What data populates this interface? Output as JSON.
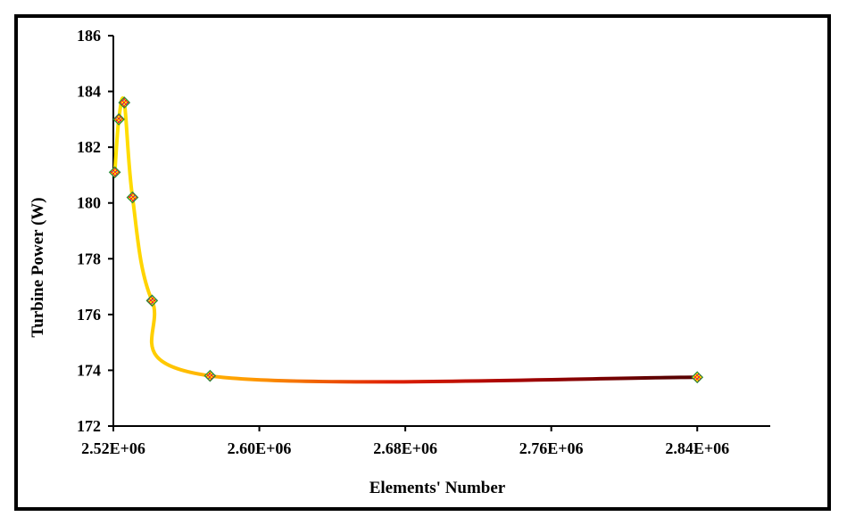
{
  "chart_data": {
    "type": "line",
    "title": "",
    "xlabel": "Elements' Number",
    "ylabel": "Turbine Power (W)",
    "xlim": [
      2520000,
      2880000
    ],
    "ylim": [
      172,
      186
    ],
    "x_ticks": [
      {
        "value": 2520000,
        "label": "2.52E+06"
      },
      {
        "value": 2600000,
        "label": "2.60E+06"
      },
      {
        "value": 2680000,
        "label": "2.68E+06"
      },
      {
        "value": 2760000,
        "label": "2.76E+06"
      },
      {
        "value": 2840000,
        "label": "2.84E+06"
      }
    ],
    "y_ticks": [
      {
        "value": 172,
        "label": "172"
      },
      {
        "value": 174,
        "label": "174"
      },
      {
        "value": 176,
        "label": "176"
      },
      {
        "value": 178,
        "label": "178"
      },
      {
        "value": 180,
        "label": "180"
      },
      {
        "value": 182,
        "label": "182"
      },
      {
        "value": 184,
        "label": "184"
      },
      {
        "value": 186,
        "label": "186"
      }
    ],
    "grid": false,
    "legend": "none",
    "series": [
      {
        "x": [
          2520800,
          2523000,
          2526000,
          2530500,
          2541200,
          2573000,
          2840000
        ],
        "y": [
          181.1,
          183.0,
          183.6,
          180.2,
          176.5,
          173.8,
          173.75
        ]
      }
    ],
    "line_gradient": [
      "#ffe400",
      "#ff9a00",
      "#e02000",
      "#a00000",
      "#5a0000"
    ],
    "marker_colors": [
      "#ff2a2a",
      "#ffd400",
      "#2a7fff"
    ]
  }
}
